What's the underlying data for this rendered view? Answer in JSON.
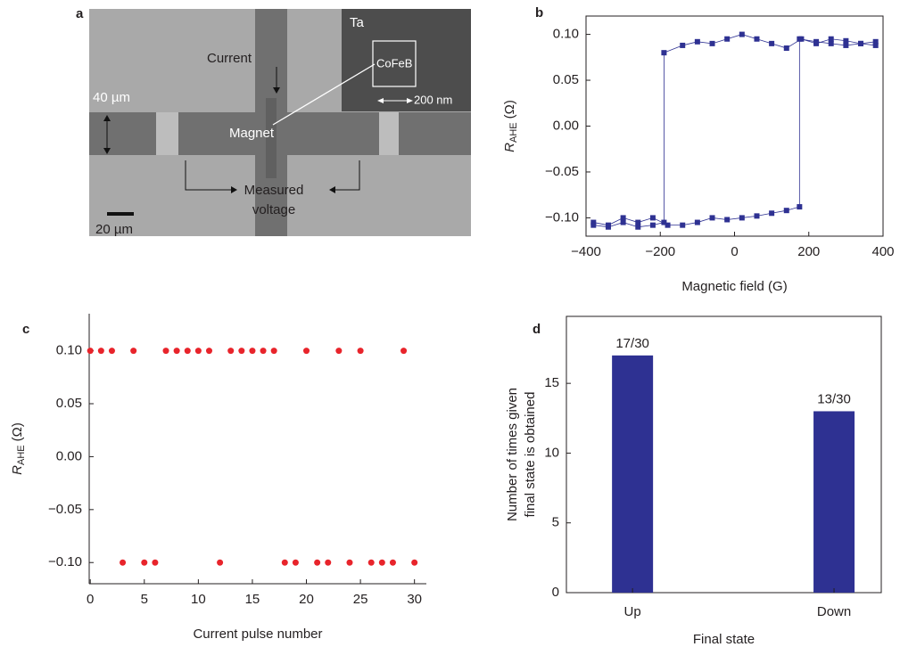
{
  "image": {
    "panel": "a",
    "inset_material": "Ta",
    "inset_element": "CoFeB",
    "current": "Current",
    "width": "40 µm",
    "magnet": "Magnet",
    "inset_scale": "200 nm",
    "measured": [
      "Measured",
      "voltage"
    ],
    "scale": "20 µm"
  },
  "chart_data": [
    {
      "type": "line",
      "panel": "b",
      "xlabel": "Magnetic field (G)",
      "ylabel": {
        "symbol": "R",
        "subscript": "AHE",
        "unit": "(Ω)"
      },
      "xlim": [
        -400,
        400
      ],
      "ylim": [
        -0.12,
        0.12
      ],
      "xticks": [
        {
          "value": -400,
          "label": "−400"
        },
        {
          "value": -200,
          "label": "−200"
        },
        0,
        200,
        400
      ],
      "yticks": [
        {
          "value": -0.1,
          "label": "−0.10"
        },
        {
          "value": -0.05,
          "label": "−0.05"
        },
        {
          "value": 0,
          "label": "0.00"
        },
        {
          "value": 0.05,
          "label": "0.05"
        },
        {
          "value": 0.1,
          "label": "0.10"
        }
      ],
      "series": [
        {
          "color": "#2e3192",
          "x": [
            -380,
            -340,
            -300,
            -260,
            -220,
            -180,
            -140,
            -100,
            -60,
            -20,
            20,
            60,
            100,
            140,
            175,
            175,
            220,
            260,
            300,
            340,
            380
          ],
          "values": [
            -0.105,
            -0.108,
            -0.1,
            -0.105,
            -0.1,
            -0.108,
            -0.108,
            -0.105,
            -0.1,
            -0.102,
            -0.1,
            -0.098,
            -0.095,
            -0.092,
            -0.088,
            0.095,
            0.092,
            0.09,
            0.088,
            0.09,
            0.088
          ]
        },
        {
          "color": "#2e3192",
          "x": [
            380,
            340,
            300,
            260,
            220,
            180,
            140,
            100,
            60,
            20,
            -20,
            -60,
            -100,
            -140,
            -190,
            -190,
            -220,
            -260,
            -300,
            -340,
            -380
          ],
          "values": [
            0.092,
            0.09,
            0.093,
            0.095,
            0.09,
            0.095,
            0.085,
            0.09,
            0.095,
            0.1,
            0.095,
            0.09,
            0.092,
            0.088,
            0.08,
            -0.105,
            -0.108,
            -0.11,
            -0.105,
            -0.11,
            -0.108
          ]
        }
      ]
    },
    {
      "type": "scatter",
      "panel": "c",
      "xlabel": "Current pulse number",
      "ylabel": {
        "symbol": "R",
        "subscript": "AHE",
        "unit": "(Ω)"
      },
      "xlim": [
        -0.1,
        31.1
      ],
      "ylim": [
        -0.12,
        0.135
      ],
      "xticks": [
        0,
        5,
        10,
        15,
        20,
        25,
        30
      ],
      "yticks": [
        {
          "value": -0.1,
          "label": "−0.10"
        },
        {
          "value": -0.05,
          "label": "−0.05"
        },
        {
          "value": 0,
          "label": "0.00"
        },
        {
          "value": 0.05,
          "label": "0.05"
        },
        {
          "value": 0.1,
          "label": "0.10"
        }
      ],
      "series": [
        {
          "color": "#e8242b",
          "x": [
            0,
            1,
            2,
            3,
            4,
            5,
            6,
            7,
            8,
            9,
            10,
            11,
            12,
            13,
            14,
            15,
            16,
            17,
            18,
            19,
            20,
            21,
            22,
            23,
            24,
            25,
            26,
            27,
            28,
            29,
            30
          ],
          "values": [
            0.1,
            0.1,
            0.1,
            -0.1,
            0.1,
            -0.1,
            -0.1,
            0.1,
            0.1,
            0.1,
            0.1,
            0.1,
            -0.1,
            0.1,
            0.1,
            0.1,
            0.1,
            0.1,
            -0.1,
            -0.1,
            0.1,
            -0.1,
            -0.1,
            0.1,
            -0.1,
            0.1,
            -0.1,
            -0.1,
            -0.1,
            0.1,
            -0.1
          ]
        }
      ]
    },
    {
      "type": "bar",
      "panel": "d",
      "xlabel": "Final state",
      "ylabel": [
        "Number of  times given",
        "final state is obtained"
      ],
      "categories": [
        "Up",
        "Down"
      ],
      "values": [
        17,
        13
      ],
      "value_labels": [
        "17/30",
        "13/30"
      ],
      "color": "#2e3192",
      "ylim": [
        0,
        19.8
      ],
      "yticks": [
        0,
        5,
        10,
        15
      ]
    }
  ]
}
